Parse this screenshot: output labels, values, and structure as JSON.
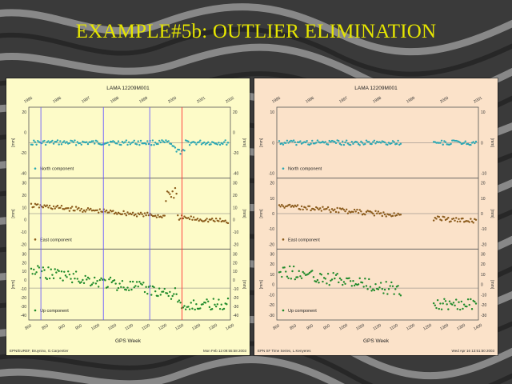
{
  "slide": {
    "title": "EXAMPLE#5b: OUTLIER ELIMINATION"
  },
  "colors": {
    "title": "#e6e600",
    "panel_left_bg": "#fdfbc8",
    "panel_right_bg": "#fbe2c9",
    "north": "#2aa7b3",
    "east": "#8a5a1a",
    "up": "#1f8a2a",
    "blue_line": "#6b5cff",
    "red_line": "#ff3030"
  },
  "panels": [
    {
      "id": "left",
      "title": "LAMA 12209M001",
      "top_ticks": [
        "1995",
        "1996",
        "1997",
        "1998",
        "1999",
        "2000",
        "2001",
        "2002"
      ],
      "bottom_ticks": [
        "800",
        "850",
        "900",
        "950",
        "1000",
        "1050",
        "1100",
        "1150",
        "1200",
        "1250",
        "1300",
        "1350",
        "1400"
      ],
      "xlabel": "GPS Week",
      "footer_left": "EPN/EUREF, Bruyninx, G.Carpentier",
      "footer_right": "Mon Feb 13 09:55:58 2003",
      "components": [
        {
          "label": "North component",
          "ticks": [
            "20",
            "0",
            "-20",
            "-40"
          ],
          "unit": "[mm]"
        },
        {
          "label": "East component",
          "ticks": [
            "30",
            "20",
            "10",
            "0",
            "-10",
            "-20"
          ],
          "unit": "[mm]"
        },
        {
          "label": "Up component",
          "ticks": [
            "30",
            "20",
            "10",
            "0",
            "-10",
            "-20",
            "-30",
            "-40"
          ],
          "unit": "[mm]"
        }
      ]
    },
    {
      "id": "right",
      "title": "LAMA 12209M001",
      "top_ticks": [
        "1995",
        "1996",
        "1997",
        "1998",
        "1999",
        "2000",
        "2001"
      ],
      "bottom_ticks": [
        "800",
        "850",
        "900",
        "950",
        "1000",
        "1050",
        "1100",
        "1150",
        "1200",
        "1250",
        "1300",
        "1350",
        "1400"
      ],
      "xlabel": "GPS Week",
      "footer_left": "EPN SF Time Series, L.Kenyeres",
      "footer_right": "Wed Apr 16 13:51:50 2003",
      "components": [
        {
          "label": "North component",
          "ticks": [
            "10",
            "0",
            "-10"
          ],
          "unit": "[mm]"
        },
        {
          "label": "East component",
          "ticks": [
            "20",
            "10",
            "0",
            "-10",
            "-20"
          ],
          "unit": "[mm]"
        },
        {
          "label": "Up component",
          "ticks": [
            "30",
            "20",
            "10",
            "0",
            "-10",
            "-20",
            "-30"
          ],
          "unit": "[mm]"
        }
      ]
    }
  ]
}
